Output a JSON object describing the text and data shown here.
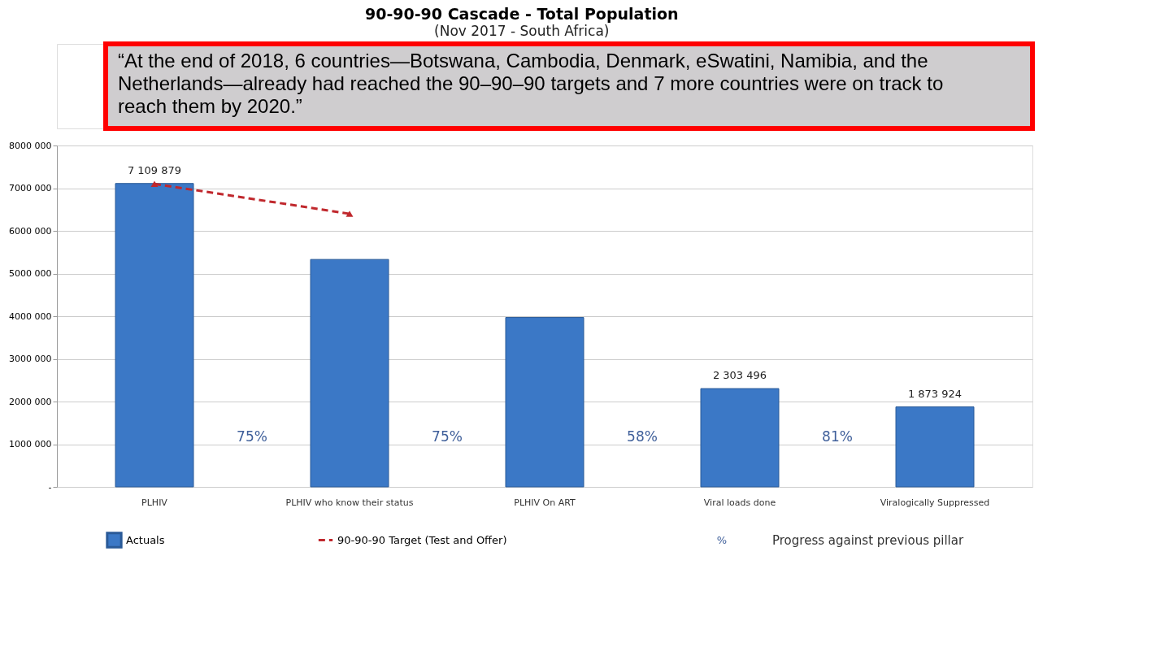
{
  "chart_data": {
    "type": "bar",
    "title": "90-90-90 Cascade - Total Population",
    "subtitle": "(Nov 2017 - South Africa)",
    "categories": [
      "PLHIV",
      "PLHIV who know their status",
      "PLHIV On ART",
      "Viral loads done",
      "Viralogically Suppressed"
    ],
    "series": [
      {
        "name": "Actuals",
        "color": "#3b78c6",
        "values": [
          7109879,
          5330000,
          3970000,
          2303496,
          1873924
        ],
        "value_labels": [
          "7 109 879",
          null,
          null,
          "2 303 496",
          "1 873 924"
        ]
      },
      {
        "name": "90-90-90 Target (Test and Offer)",
        "type": "line",
        "color": "#c0282d",
        "line_style": "dashed",
        "marker": "triangle",
        "values": [
          7100000,
          6400000,
          null,
          null,
          null
        ]
      }
    ],
    "ylim": [
      0,
      8000000
    ],
    "yticks": [
      {
        "value": 0,
        "label": "-"
      },
      {
        "value": 1000000,
        "label": "1000 000"
      },
      {
        "value": 2000000,
        "label": "2000 000"
      },
      {
        "value": 3000000,
        "label": "3000 000"
      },
      {
        "value": 4000000,
        "label": "4000 000"
      },
      {
        "value": 5000000,
        "label": "5000 000"
      },
      {
        "value": 6000000,
        "label": "6000 000"
      },
      {
        "value": 7000000,
        "label": "7000 000"
      },
      {
        "value": 8000000,
        "label": "8000 000"
      }
    ],
    "grid": "y",
    "legend": "bottom",
    "annotations": [
      "75%",
      "75%",
      "58%",
      "81%",
      "%",
      "Progress against previous pillar",
      "“At the end of 2018, 6 countries—Botswana, Cambodia, Denmark, eSwatini, Namibia, and the Netherlands—already had reached the 90–90–90 targets and 7 more countries were on track to reach them by 2020.”"
    ]
  }
}
